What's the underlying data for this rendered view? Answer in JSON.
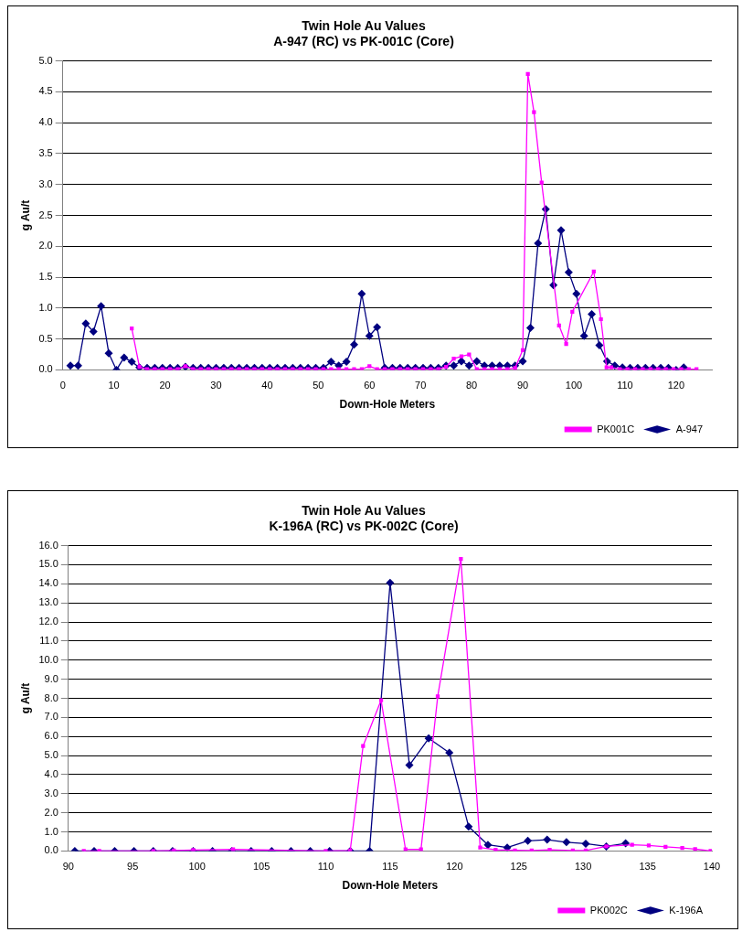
{
  "chart_data": [
    {
      "type": "line",
      "title": "Twin Hole Au Values",
      "subtitle": "A-947 (RC) vs PK-001C (Core)",
      "xlabel": "Down-Hole Meters",
      "ylabel": "g Au/t",
      "xlim": [
        0,
        127
      ],
      "xticks": [
        0,
        10,
        20,
        30,
        40,
        50,
        60,
        70,
        80,
        90,
        100,
        110,
        120
      ],
      "ylim": [
        0,
        5
      ],
      "yticks": [
        {
          "value": 0,
          "label": "0.0"
        },
        {
          "value": 0.5,
          "label": "0.5"
        },
        {
          "value": 1,
          "label": "1.0"
        },
        {
          "value": 1.5,
          "label": "1.5"
        },
        {
          "value": 2,
          "label": "2.0"
        },
        {
          "value": 2.5,
          "label": "2.5"
        },
        {
          "value": 3,
          "label": "3.0"
        },
        {
          "value": 3.5,
          "label": "3.5"
        },
        {
          "value": 4,
          "label": "4.0"
        },
        {
          "value": 4.5,
          "label": "4.5"
        },
        {
          "value": 5,
          "label": "5.0"
        }
      ],
      "grid": "y",
      "legend": "bottom right",
      "line_style": "solid",
      "series": [
        {
          "name": "PK001C",
          "color": "#ff00ff",
          "marker": "square",
          "x": [
            13.5,
            15,
            16.5,
            18,
            19.5,
            21,
            22.5,
            24,
            25.5,
            27,
            28.5,
            30,
            31.5,
            33,
            34.5,
            36,
            37.5,
            39,
            40.5,
            42,
            43.5,
            45,
            46.5,
            48,
            49.5,
            51,
            52.5,
            54,
            55.5,
            57,
            58.5,
            60,
            61.5,
            63,
            64.5,
            66,
            67.5,
            69,
            70.5,
            72,
            73.5,
            75,
            76.5,
            78,
            79.5,
            81,
            82.5,
            84,
            85.5,
            87,
            88.5,
            90,
            91,
            92.2,
            93.7,
            97.1,
            98.5,
            99.7,
            103.9,
            105.3,
            106.4,
            107.3,
            109,
            110.5,
            112,
            113.5,
            115,
            116.5,
            118,
            119.5,
            121,
            122.5,
            124
          ],
          "values": [
            0.67,
            0.05,
            0.01,
            0.01,
            0.01,
            0.01,
            0.01,
            0.06,
            0.01,
            0.01,
            0.01,
            0.01,
            0.01,
            0.01,
            0.01,
            0.01,
            0.01,
            0.01,
            0.01,
            0.01,
            0.01,
            0.01,
            0.01,
            0.01,
            0.01,
            0.01,
            0.01,
            0.01,
            0.01,
            0.01,
            0.01,
            0.06,
            0.01,
            0.01,
            0.01,
            0.01,
            0.01,
            0.01,
            0.01,
            0.01,
            0.01,
            0.05,
            0.18,
            0.22,
            0.25,
            0.01,
            0.01,
            0.01,
            0.01,
            0.01,
            0.03,
            0.32,
            4.79,
            4.17,
            3.03,
            0.72,
            0.42,
            0.94,
            1.59,
            0.82,
            0.04,
            0.04,
            0.01,
            0.01,
            0.01,
            0.01,
            0.01,
            0.01,
            0.01,
            0.01,
            0.01,
            0.01,
            0.01
          ]
        },
        {
          "name": "A-947",
          "color": "#000080",
          "marker": "diamond",
          "x": [
            1.5,
            3,
            4.5,
            6,
            7.5,
            9,
            10.5,
            12,
            13.5,
            15,
            16.5,
            18,
            19.5,
            21,
            22.5,
            24,
            25.5,
            27,
            28.5,
            30,
            31.5,
            33,
            34.5,
            36,
            37.5,
            39,
            40.5,
            42,
            43.5,
            45,
            46.5,
            48,
            49.5,
            51,
            52.5,
            54,
            55.5,
            57,
            58.5,
            60,
            61.5,
            63,
            64.5,
            66,
            67.5,
            69,
            70.5,
            72,
            73.5,
            75,
            76.5,
            78,
            79.5,
            81,
            82.5,
            84,
            85.5,
            87,
            88.5,
            90,
            91.5,
            93,
            94.5,
            96,
            97.5,
            99,
            100.5,
            102,
            103.5,
            105,
            106.5,
            108,
            109.5,
            111,
            112.5,
            114,
            115.5,
            117,
            118.5,
            120,
            121.5
          ],
          "values": [
            0.07,
            0.07,
            0.75,
            0.62,
            1.03,
            0.27,
            0.0,
            0.2,
            0.13,
            0.04,
            0.03,
            0.03,
            0.03,
            0.03,
            0.03,
            0.05,
            0.03,
            0.03,
            0.03,
            0.03,
            0.03,
            0.03,
            0.03,
            0.03,
            0.03,
            0.03,
            0.03,
            0.03,
            0.03,
            0.03,
            0.03,
            0.03,
            0.03,
            0.03,
            0.13,
            0.07,
            0.13,
            0.41,
            1.23,
            0.55,
            0.69,
            0.03,
            0.03,
            0.03,
            0.03,
            0.03,
            0.03,
            0.03,
            0.03,
            0.07,
            0.07,
            0.14,
            0.07,
            0.14,
            0.07,
            0.07,
            0.07,
            0.07,
            0.07,
            0.14,
            0.68,
            2.05,
            2.6,
            1.37,
            2.26,
            1.58,
            1.23,
            0.55,
            0.9,
            0.4,
            0.14,
            0.07,
            0.04,
            0.03,
            0.03,
            0.03,
            0.03,
            0.03,
            0.03,
            0.0,
            0.04
          ]
        }
      ]
    },
    {
      "type": "line",
      "title": "Twin Hole Au Values",
      "subtitle": "K-196A (RC) vs PK-002C (Core)",
      "xlabel": "Down-Hole Meters",
      "ylabel": "g Au/t",
      "xlim": [
        90,
        140
      ],
      "xticks": [
        90,
        95,
        100,
        105,
        110,
        115,
        120,
        125,
        130,
        135,
        140
      ],
      "ylim": [
        0,
        16
      ],
      "yticks": [
        {
          "value": 0,
          "label": "0.0"
        },
        {
          "value": 1,
          "label": "1.0"
        },
        {
          "value": 2,
          "label": "2.0"
        },
        {
          "value": 3,
          "label": "3.0"
        },
        {
          "value": 4,
          "label": "4.0"
        },
        {
          "value": 5,
          "label": "5.0"
        },
        {
          "value": 6,
          "label": "6.0"
        },
        {
          "value": 7,
          "label": "7.0"
        },
        {
          "value": 8,
          "label": "8.0"
        },
        {
          "value": 9,
          "label": "9.0"
        },
        {
          "value": 10,
          "label": "10.0"
        },
        {
          "value": 11,
          "label": "11.0"
        },
        {
          "value": 12,
          "label": "12.0"
        },
        {
          "value": 13,
          "label": "13.0"
        },
        {
          "value": 14,
          "label": "14.0"
        },
        {
          "value": 15,
          "label": "15.0"
        },
        {
          "value": 16,
          "label": "16.0"
        }
      ],
      "grid": "y",
      "legend": "bottom right",
      "line_style": "solid",
      "series": [
        {
          "name": "PK002C",
          "color": "#ff00ff",
          "marker": "square",
          "x": [
            91.2,
            92.4,
            96.6,
            98.2,
            99.7,
            102.8,
            110,
            111.9,
            112.9,
            114.3,
            116.2,
            117.4,
            118.7,
            120.5,
            122,
            123.2,
            124.7,
            126,
            127.4,
            129.2,
            130.2,
            131.8,
            133.8,
            135.1,
            136.4,
            137.7,
            138.7,
            139.9
          ],
          "values": [
            0,
            0,
            0,
            0.02,
            0.05,
            0.08,
            0,
            0.02,
            5.5,
            7.9,
            0.08,
            0.08,
            8.1,
            15.3,
            0.18,
            0.06,
            0.03,
            0.02,
            0.06,
            0.02,
            0.02,
            0.24,
            0.32,
            0.29,
            0.22,
            0.16,
            0.1,
            0
          ]
        },
        {
          "name": "K-196A",
          "color": "#000080",
          "marker": "diamond",
          "x": [
            90.5,
            92,
            93.6,
            95.1,
            96.6,
            98.1,
            99.7,
            101.2,
            102.7,
            104.2,
            105.8,
            107.3,
            108.8,
            110.3,
            111.9,
            113.4,
            115,
            116.5,
            118,
            119.6,
            121.1,
            122.6,
            124.1,
            125.7,
            127.2,
            128.7,
            130.2,
            131.8,
            133.3
          ],
          "values": [
            0,
            0,
            0,
            0,
            0,
            0,
            0,
            0,
            0,
            0,
            0,
            0,
            0,
            0,
            0,
            0,
            14.05,
            4.5,
            5.9,
            5.15,
            1.28,
            0.32,
            0.18,
            0.53,
            0.59,
            0.46,
            0.38,
            0.24,
            0.4
          ]
        }
      ]
    }
  ]
}
